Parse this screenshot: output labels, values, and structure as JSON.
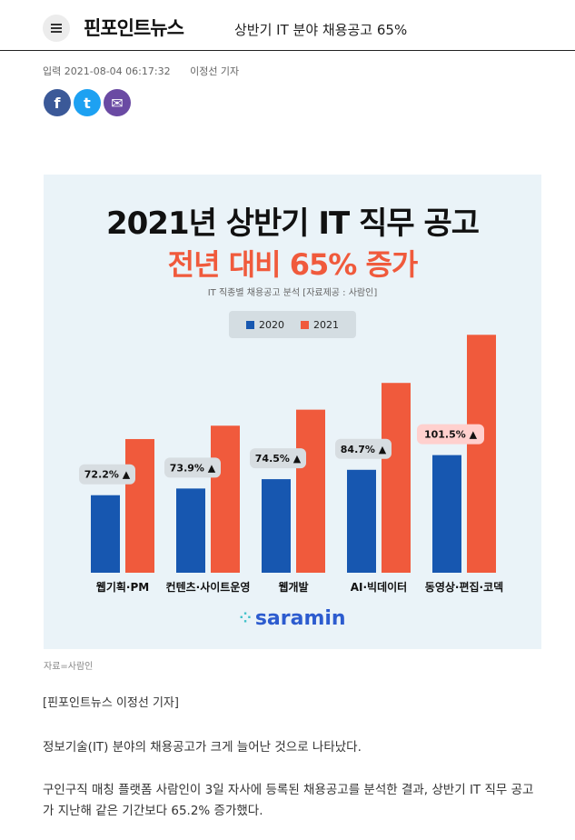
{
  "header": {
    "logo": "핀포인트뉴스",
    "headline": "상반기 IT 분야 채용공고 65%"
  },
  "meta": {
    "date": "입력 2021-08-04 06:17:32",
    "reporter": "이정선 기자"
  },
  "share": {
    "facebook_glyph": "f",
    "twitter_glyph": "t",
    "email_glyph": "✉"
  },
  "figure": {
    "title_line1": "2021년 상반기 IT 직무 공고",
    "title_line2": "전년 대비 65% 증가",
    "subtitle": "IT 직종별 채용공고 분석 [자료제공 : 사람인]",
    "brand": "saramin",
    "brand_dots": "⁘"
  },
  "chart_data": {
    "type": "bar",
    "categories": [
      "웹기획·PM",
      "컨텐츠·사이트운영",
      "웹개발",
      "AI·빅데이터",
      "동영상·편집·코덱"
    ],
    "series": [
      {
        "name": "2020",
        "values": [
          58,
          63,
          70,
          77,
          88
        ]
      },
      {
        "name": "2021",
        "values": [
          100,
          110,
          122,
          142,
          178
        ]
      }
    ],
    "annotations": [
      "72.2% ▲",
      "73.9% ▲",
      "74.5% ▲",
      "84.7% ▲",
      "101.5% ▲"
    ],
    "ylim": [
      0,
      185
    ],
    "colors": {
      "2020": "#1757b0",
      "2021": "#f05a3c"
    },
    "legend_position": "top-center",
    "grid": false
  },
  "caption": "자료=사람인",
  "byline": "[핀포인트뉴스 이정선 기자]",
  "paragraphs": [
    "정보기술(IT) 분야의 채용공고가 크게 늘어난 것으로 나타났다.",
    "구인구직 매칭 플랫폼 사람인이 3일 자사에 등록된 채용공고를 분석한 결과, 상반기 IT 직무 공고가 지난해 같은 기간보다 65.2% 증가했다."
  ]
}
